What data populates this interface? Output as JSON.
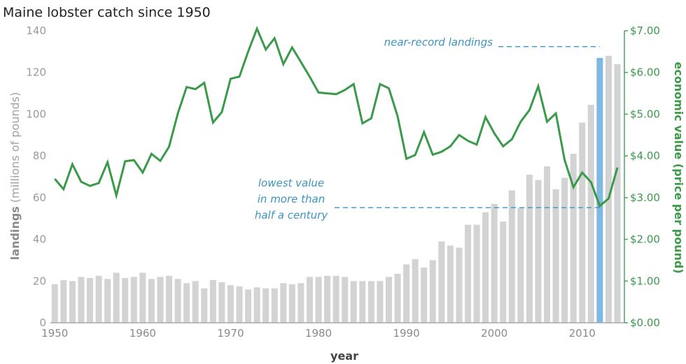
{
  "chart_data": {
    "type": "bar",
    "title": "Maine lobster catch since 1950",
    "xlabel": "year",
    "ylabel_left": {
      "main": "landings",
      "unit": "(millions of pounds)"
    },
    "ylabel_right": "economic value (price per pound)",
    "x": [
      1950,
      1951,
      1952,
      1953,
      1954,
      1955,
      1956,
      1957,
      1958,
      1959,
      1960,
      1961,
      1962,
      1963,
      1964,
      1965,
      1966,
      1967,
      1968,
      1969,
      1970,
      1971,
      1972,
      1973,
      1974,
      1975,
      1976,
      1977,
      1978,
      1979,
      1980,
      1981,
      1982,
      1983,
      1984,
      1985,
      1986,
      1987,
      1988,
      1989,
      1990,
      1991,
      1992,
      1993,
      1994,
      1995,
      1996,
      1997,
      1998,
      1999,
      2000,
      2001,
      2002,
      2003,
      2004,
      2005,
      2006,
      2007,
      2008,
      2009,
      2010,
      2011,
      2012,
      2013,
      2014
    ],
    "xlim": [
      1949.5,
      2014.8
    ],
    "x_ticks": [
      "1950",
      "1960",
      "1970",
      "1980",
      "1990",
      "2000",
      "2010"
    ],
    "ylim_left": [
      0,
      140
    ],
    "y_ticks_left": [
      "0",
      "20",
      "40",
      "60",
      "80",
      "100",
      "120",
      "140"
    ],
    "ylim_right": [
      0,
      7
    ],
    "y_ticks_right": [
      "$0.00",
      "$1.00",
      "$2.00",
      "$3.00",
      "$4.00",
      "$5.00",
      "$6.00",
      "$7.00"
    ],
    "grid": false,
    "series": [
      {
        "type": "bar",
        "axis": "left",
        "color": "#d3d3d3",
        "highlight_year": 2012,
        "highlight_color": "#7fb8e0",
        "values": [
          18.5,
          20.5,
          20,
          22,
          21.5,
          22.5,
          21,
          24,
          21.5,
          22,
          24,
          21,
          22,
          22.5,
          21,
          19,
          20,
          16.5,
          20.5,
          19.5,
          18,
          17.5,
          16,
          17,
          16.5,
          16.5,
          19,
          18.5,
          19,
          22,
          22,
          22.5,
          22.5,
          22,
          20,
          20,
          20,
          20,
          22,
          23.5,
          28,
          30.5,
          26.5,
          30,
          39,
          37,
          36,
          47,
          47,
          53,
          57,
          48.5,
          63.5,
          55,
          71,
          68.5,
          75,
          64,
          69.5,
          81,
          96,
          104.5,
          127,
          128,
          124
        ]
      },
      {
        "type": "line",
        "axis": "right",
        "color": "#3a9a4a",
        "values": [
          3.45,
          3.2,
          3.8,
          3.38,
          3.28,
          3.35,
          3.85,
          3.05,
          3.87,
          3.9,
          3.6,
          4.05,
          3.88,
          4.22,
          5.02,
          5.65,
          5.6,
          5.75,
          4.8,
          5.05,
          5.85,
          5.9,
          6.5,
          7.05,
          6.55,
          6.82,
          6.2,
          6.6,
          6.25,
          5.9,
          5.52,
          5.5,
          5.48,
          5.58,
          5.72,
          4.78,
          4.9,
          5.72,
          5.62,
          4.95,
          3.93,
          4.02,
          4.57,
          4.03,
          4.1,
          4.23,
          4.5,
          4.36,
          4.27,
          4.93,
          4.54,
          4.23,
          4.4,
          4.82,
          5.1,
          5.67,
          4.82,
          5.02,
          3.9,
          3.25,
          3.6,
          3.37,
          2.8,
          2.98,
          3.72
        ]
      }
    ],
    "annotations": [
      {
        "text": "near-record landings",
        "year": 2012,
        "value_right": 6.62
      },
      {
        "lines": [
          "lowest value",
          "in more than",
          "half a century"
        ],
        "year": 2012,
        "value_right": 2.76
      }
    ]
  }
}
